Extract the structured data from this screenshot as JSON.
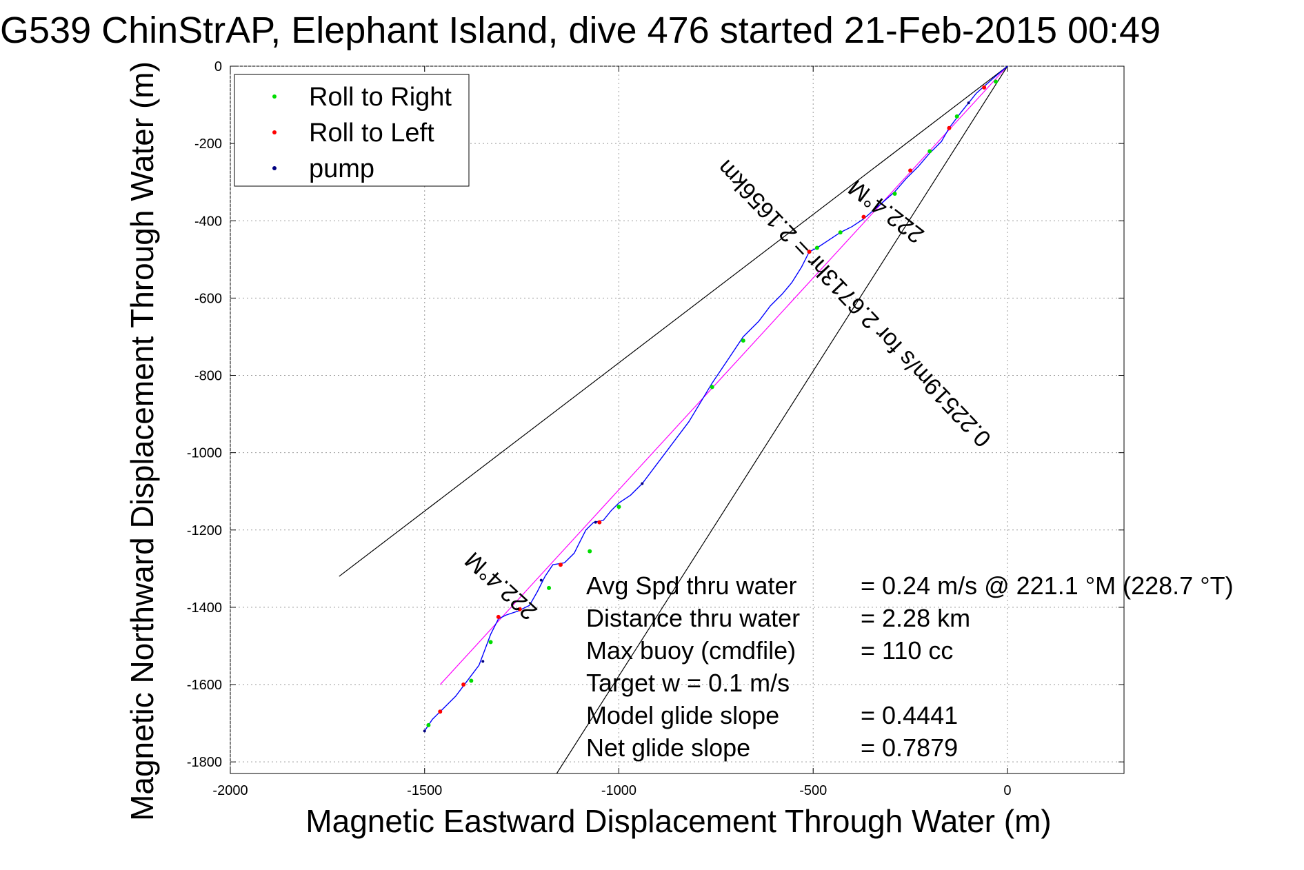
{
  "chart_data": {
    "type": "line",
    "title": "G539 ChinStrAP, Elephant Island, dive 476 started 21-Feb-2015 00:49",
    "xlabel": "Magnetic Eastward Displacement Through Water (m)",
    "ylabel": "Magnetic Northward Displacement Through Water (m)",
    "xlim": [
      -2000,
      300
    ],
    "ylim": [
      -1830,
      0
    ],
    "xticks": [
      -2000,
      -1500,
      -1000,
      -500,
      0
    ],
    "yticks": [
      0,
      -200,
      -400,
      -600,
      -800,
      -1000,
      -1200,
      -1400,
      -1600,
      -1800
    ],
    "grid": true,
    "legend_position": "top-left",
    "legend": [
      {
        "label": "Roll to Right",
        "color": "#00dd00"
      },
      {
        "label": "Roll to Left",
        "color": "#ff0000"
      },
      {
        "label": "pump",
        "color": "#000080"
      }
    ],
    "track": {
      "name": "dive track",
      "color": "#0000ff",
      "points": [
        [
          0,
          0
        ],
        [
          -35,
          -30
        ],
        [
          -80,
          -70
        ],
        [
          -120,
          -120
        ],
        [
          -150,
          -160
        ],
        [
          -170,
          -195
        ],
        [
          -200,
          -225
        ],
        [
          -230,
          -260
        ],
        [
          -260,
          -290
        ],
        [
          -290,
          -325
        ],
        [
          -330,
          -360
        ],
        [
          -370,
          -395
        ],
        [
          -400,
          -415
        ],
        [
          -430,
          -430
        ],
        [
          -460,
          -450
        ],
        [
          -490,
          -470
        ],
        [
          -510,
          -480
        ],
        [
          -530,
          -520
        ],
        [
          -555,
          -560
        ],
        [
          -580,
          -590
        ],
        [
          -610,
          -620
        ],
        [
          -640,
          -660
        ],
        [
          -680,
          -700
        ],
        [
          -720,
          -760
        ],
        [
          -760,
          -820
        ],
        [
          -790,
          -870
        ],
        [
          -820,
          -920
        ],
        [
          -850,
          -960
        ],
        [
          -880,
          -1000
        ],
        [
          -910,
          -1040
        ],
        [
          -940,
          -1080
        ],
        [
          -970,
          -1110
        ],
        [
          -1000,
          -1130
        ],
        [
          -1020,
          -1150
        ],
        [
          -1040,
          -1175
        ],
        [
          -1065,
          -1180
        ],
        [
          -1085,
          -1200
        ],
        [
          -1100,
          -1230
        ],
        [
          -1115,
          -1260
        ],
        [
          -1140,
          -1285
        ],
        [
          -1170,
          -1290
        ],
        [
          -1190,
          -1320
        ],
        [
          -1210,
          -1360
        ],
        [
          -1230,
          -1395
        ],
        [
          -1260,
          -1410
        ],
        [
          -1290,
          -1420
        ],
        [
          -1310,
          -1430
        ],
        [
          -1330,
          -1470
        ],
        [
          -1345,
          -1510
        ],
        [
          -1360,
          -1550
        ],
        [
          -1390,
          -1590
        ],
        [
          -1420,
          -1630
        ],
        [
          -1450,
          -1660
        ],
        [
          -1480,
          -1690
        ],
        [
          -1500,
          -1720
        ]
      ]
    },
    "markers": {
      "roll_right": [
        [
          -30,
          -40
        ],
        [
          -130,
          -130
        ],
        [
          -200,
          -220
        ],
        [
          -290,
          -330
        ],
        [
          -430,
          -430
        ],
        [
          -490,
          -470
        ],
        [
          -680,
          -710
        ],
        [
          -760,
          -830
        ],
        [
          -1000,
          -1140
        ],
        [
          -1075,
          -1255
        ],
        [
          -1180,
          -1350
        ],
        [
          -1330,
          -1490
        ],
        [
          -1380,
          -1590
        ],
        [
          -1490,
          -1705
        ]
      ],
      "roll_left": [
        [
          -60,
          -55
        ],
        [
          -150,
          -160
        ],
        [
          -250,
          -270
        ],
        [
          -370,
          -390
        ],
        [
          -510,
          -480
        ],
        [
          -1050,
          -1180
        ],
        [
          -1150,
          -1290
        ],
        [
          -1255,
          -1405
        ],
        [
          -1310,
          -1425
        ],
        [
          -1400,
          -1600
        ],
        [
          -1460,
          -1670
        ]
      ],
      "pump": [
        [
          -100,
          -95
        ],
        [
          -940,
          -1080
        ],
        [
          -1060,
          -1180
        ],
        [
          -1200,
          -1330
        ],
        [
          -1350,
          -1540
        ],
        [
          -1500,
          -1720
        ]
      ]
    },
    "reference_lines": [
      {
        "name": "heading",
        "color": "#ff00ff",
        "points": [
          [
            0,
            0
          ],
          [
            -1460,
            -1600
          ]
        ]
      },
      {
        "name": "wedge-upper",
        "color": "#000000",
        "points": [
          [
            0,
            0
          ],
          [
            -1720,
            -1320
          ]
        ]
      },
      {
        "name": "wedge-lower",
        "color": "#000000",
        "points": [
          [
            0,
            0
          ],
          [
            -1160,
            -1830
          ]
        ]
      }
    ],
    "annotations": [
      {
        "text": "222.4°M",
        "at": [
          -1290,
          -1330
        ],
        "angle_deg": 222.4
      },
      {
        "text": "222.4°M",
        "at": [
          -300,
          -360
        ],
        "angle_deg": 217.5
      },
      {
        "text": "0.22519m/s for 2.6713hr = 2.1656km",
        "at": [
          -380,
          -600
        ],
        "angle_deg": 226.5
      }
    ],
    "stats": [
      {
        "label": "Avg Spd thru water",
        "value": "=  0.24 m/s @ 221.1 °M (228.7 °T)"
      },
      {
        "label": "Distance thru water",
        "value": "=  2.28 km"
      },
      {
        "label": "Max buoy (cmdfile)",
        "value": "= 110 cc"
      },
      {
        "label": "Target w    = 0.1 m/s",
        "value": ""
      },
      {
        "label": "Model glide slope",
        "value": "= 0.4441"
      },
      {
        "label": "Net glide slope",
        "value": "= 0.7879"
      }
    ]
  }
}
